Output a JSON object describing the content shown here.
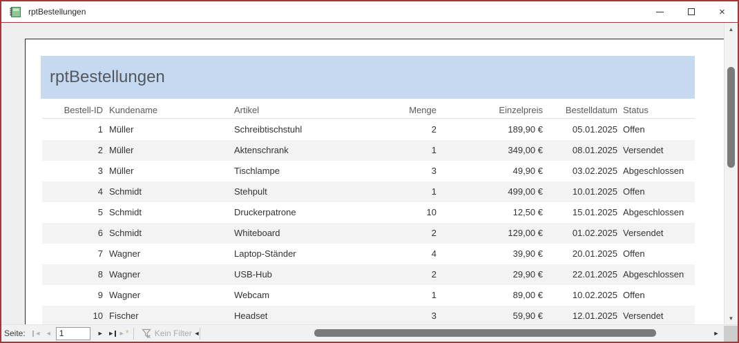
{
  "window": {
    "title": "rptBestellungen"
  },
  "icons": {
    "nav_prev": "◄",
    "nav_next": "►",
    "scroll_up": "▲",
    "scroll_down": "▼",
    "scroll_left": "◄",
    "scroll_right": "►",
    "new_record_star": "*"
  },
  "report": {
    "title": "rptBestellungen",
    "columns": [
      "Bestell-ID",
      "Kundename",
      "Artikel",
      "Menge",
      "Einzelpreis",
      "Bestelldatum",
      "Status"
    ],
    "rows": [
      [
        "1",
        "Müller",
        "Schreibtischstuhl",
        "2",
        "189,90 €",
        "05.01.2025",
        "Offen"
      ],
      [
        "2",
        "Müller",
        "Aktenschrank",
        "1",
        "349,00 €",
        "08.01.2025",
        "Versendet"
      ],
      [
        "3",
        "Müller",
        "Tischlampe",
        "3",
        "49,90 €",
        "03.02.2025",
        "Abgeschlossen"
      ],
      [
        "4",
        "Schmidt",
        "Stehpult",
        "1",
        "499,00 €",
        "10.01.2025",
        "Offen"
      ],
      [
        "5",
        "Schmidt",
        "Druckerpatrone",
        "10",
        "12,50 €",
        "15.01.2025",
        "Abgeschlossen"
      ],
      [
        "6",
        "Schmidt",
        "Whiteboard",
        "2",
        "129,00 €",
        "01.02.2025",
        "Versendet"
      ],
      [
        "7",
        "Wagner",
        "Laptop-Ständer",
        "4",
        "39,90 €",
        "20.01.2025",
        "Offen"
      ],
      [
        "8",
        "Wagner",
        "USB-Hub",
        "2",
        "29,90 €",
        "22.01.2025",
        "Abgeschlossen"
      ],
      [
        "9",
        "Wagner",
        "Webcam",
        "1",
        "89,00 €",
        "10.02.2025",
        "Offen"
      ],
      [
        "10",
        "Fischer",
        "Headset",
        "3",
        "59,90 €",
        "12.01.2025",
        "Versendet"
      ]
    ]
  },
  "statusbar": {
    "page_label": "Seite:",
    "page_value": "1",
    "filter_label": "Kein Filter"
  },
  "colors": {
    "accent_border": "#A4373A",
    "banner": "#C5D9F1",
    "row_stripe": "#F3F3F3"
  }
}
